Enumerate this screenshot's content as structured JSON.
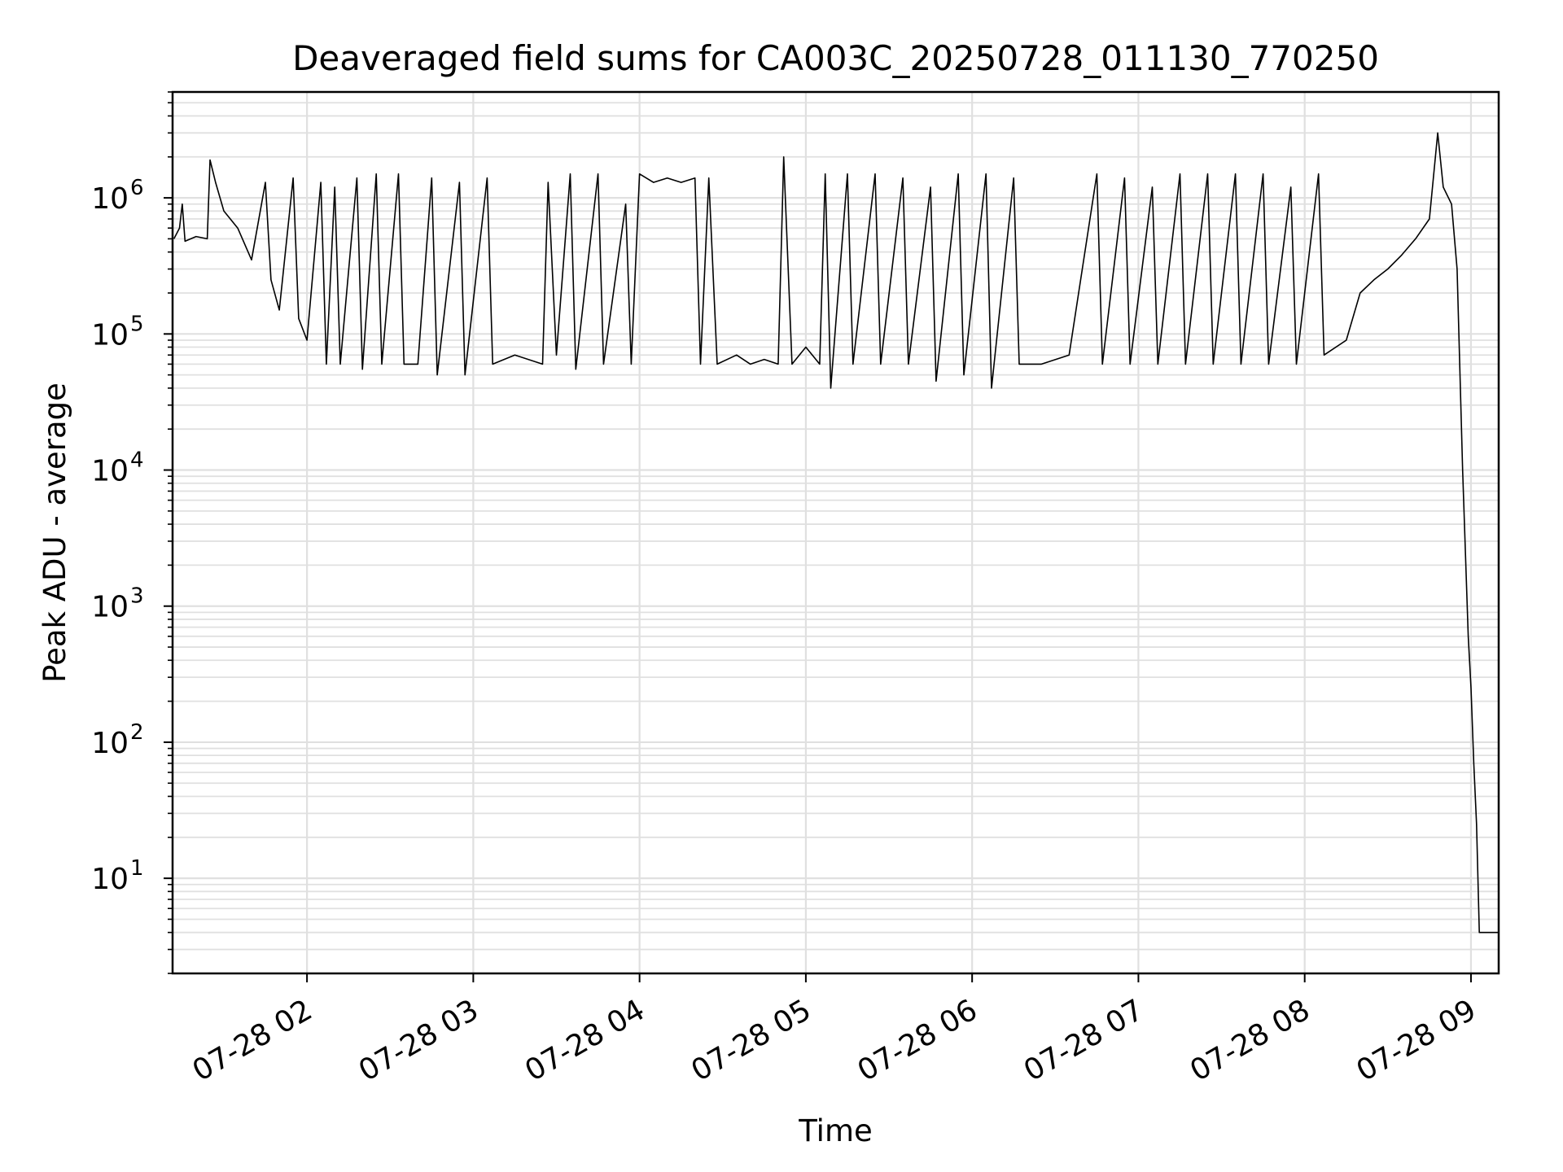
{
  "chart_data": {
    "type": "line",
    "title": "Deaveraged field sums for CA003C_20250728_011130_770250",
    "xlabel": "Time",
    "ylabel": "Peak ADU - average",
    "yscale": "log",
    "ylim": [
      2,
      6000000
    ],
    "xlim": [
      "2025-07-28 01:11:30",
      "2025-07-28 09:10:00"
    ],
    "grid": true,
    "line_color": "#000000",
    "grid_color": "#e0e0e0",
    "x_ticks": [
      {
        "t": "2025-07-28 02:00",
        "label": "07-28 02"
      },
      {
        "t": "2025-07-28 03:00",
        "label": "07-28 03"
      },
      {
        "t": "2025-07-28 04:00",
        "label": "07-28 04"
      },
      {
        "t": "2025-07-28 05:00",
        "label": "07-28 05"
      },
      {
        "t": "2025-07-28 06:00",
        "label": "07-28 06"
      },
      {
        "t": "2025-07-28 07:00",
        "label": "07-28 07"
      },
      {
        "t": "2025-07-28 08:00",
        "label": "07-28 08"
      },
      {
        "t": "2025-07-28 09:00",
        "label": "07-28 09"
      }
    ],
    "y_ticks": [
      {
        "value": 10,
        "base": "10",
        "exp": "1"
      },
      {
        "value": 100,
        "base": "10",
        "exp": "2"
      },
      {
        "value": 1000,
        "base": "10",
        "exp": "3"
      },
      {
        "value": 10000,
        "base": "10",
        "exp": "4"
      },
      {
        "value": 100000,
        "base": "10",
        "exp": "5"
      },
      {
        "value": 1000000,
        "base": "10",
        "exp": "6"
      }
    ],
    "series": [
      {
        "points": [
          [
            "2025-07-28 01:12",
            500000
          ],
          [
            "2025-07-28 01:14",
            600000
          ],
          [
            "2025-07-28 01:15",
            900000
          ],
          [
            "2025-07-28 01:16",
            480000
          ],
          [
            "2025-07-28 01:20",
            520000
          ],
          [
            "2025-07-28 01:24",
            500000
          ],
          [
            "2025-07-28 01:25",
            1900000
          ],
          [
            "2025-07-28 01:27",
            1300000
          ],
          [
            "2025-07-28 01:30",
            800000
          ],
          [
            "2025-07-28 01:35",
            600000
          ],
          [
            "2025-07-28 01:40",
            350000
          ],
          [
            "2025-07-28 01:45",
            1300000
          ],
          [
            "2025-07-28 01:47",
            250000
          ],
          [
            "2025-07-28 01:50",
            150000
          ],
          [
            "2025-07-28 01:55",
            1400000
          ],
          [
            "2025-07-28 01:57",
            130000
          ],
          [
            "2025-07-28 02:00",
            90000
          ],
          [
            "2025-07-28 02:05",
            1300000
          ],
          [
            "2025-07-28 02:07",
            60000
          ],
          [
            "2025-07-28 02:10",
            1200000
          ],
          [
            "2025-07-28 02:12",
            60000
          ],
          [
            "2025-07-28 02:18",
            1400000
          ],
          [
            "2025-07-28 02:20",
            55000
          ],
          [
            "2025-07-28 02:25",
            1500000
          ],
          [
            "2025-07-28 02:27",
            60000
          ],
          [
            "2025-07-28 02:33",
            1500000
          ],
          [
            "2025-07-28 02:35",
            60000
          ],
          [
            "2025-07-28 02:40",
            60000
          ],
          [
            "2025-07-28 02:45",
            1400000
          ],
          [
            "2025-07-28 02:47",
            50000
          ],
          [
            "2025-07-28 02:55",
            1300000
          ],
          [
            "2025-07-28 02:57",
            50000
          ],
          [
            "2025-07-28 03:05",
            1400000
          ],
          [
            "2025-07-28 03:07",
            60000
          ],
          [
            "2025-07-28 03:15",
            70000
          ],
          [
            "2025-07-28 03:25",
            60000
          ],
          [
            "2025-07-28 03:27",
            1300000
          ],
          [
            "2025-07-28 03:30",
            70000
          ],
          [
            "2025-07-28 03:35",
            1500000
          ],
          [
            "2025-07-28 03:37",
            55000
          ],
          [
            "2025-07-28 03:45",
            1500000
          ],
          [
            "2025-07-28 03:47",
            60000
          ],
          [
            "2025-07-28 03:55",
            900000
          ],
          [
            "2025-07-28 03:57",
            60000
          ],
          [
            "2025-07-28 04:00",
            1500000
          ],
          [
            "2025-07-28 04:05",
            1300000
          ],
          [
            "2025-07-28 04:10",
            1400000
          ],
          [
            "2025-07-28 04:15",
            1300000
          ],
          [
            "2025-07-28 04:20",
            1400000
          ],
          [
            "2025-07-28 04:22",
            60000
          ],
          [
            "2025-07-28 04:25",
            1400000
          ],
          [
            "2025-07-28 04:28",
            60000
          ],
          [
            "2025-07-28 04:35",
            70000
          ],
          [
            "2025-07-28 04:40",
            60000
          ],
          [
            "2025-07-28 04:45",
            65000
          ],
          [
            "2025-07-28 04:50",
            60000
          ],
          [
            "2025-07-28 04:52",
            2000000
          ],
          [
            "2025-07-28 04:55",
            60000
          ],
          [
            "2025-07-28 05:00",
            80000
          ],
          [
            "2025-07-28 05:05",
            60000
          ],
          [
            "2025-07-28 05:07",
            1500000
          ],
          [
            "2025-07-28 05:09",
            40000
          ],
          [
            "2025-07-28 05:15",
            1500000
          ],
          [
            "2025-07-28 05:17",
            60000
          ],
          [
            "2025-07-28 05:25",
            1500000
          ],
          [
            "2025-07-28 05:27",
            60000
          ],
          [
            "2025-07-28 05:35",
            1400000
          ],
          [
            "2025-07-28 05:37",
            60000
          ],
          [
            "2025-07-28 05:45",
            1200000
          ],
          [
            "2025-07-28 05:47",
            45000
          ],
          [
            "2025-07-28 05:55",
            1500000
          ],
          [
            "2025-07-28 05:57",
            50000
          ],
          [
            "2025-07-28 06:05",
            1500000
          ],
          [
            "2025-07-28 06:07",
            40000
          ],
          [
            "2025-07-28 06:15",
            1400000
          ],
          [
            "2025-07-28 06:17",
            60000
          ],
          [
            "2025-07-28 06:25",
            60000
          ],
          [
            "2025-07-28 06:35",
            70000
          ],
          [
            "2025-07-28 06:45",
            1500000
          ],
          [
            "2025-07-28 06:47",
            60000
          ],
          [
            "2025-07-28 06:55",
            1400000
          ],
          [
            "2025-07-28 06:57",
            60000
          ],
          [
            "2025-07-28 07:05",
            1200000
          ],
          [
            "2025-07-28 07:07",
            60000
          ],
          [
            "2025-07-28 07:15",
            1500000
          ],
          [
            "2025-07-28 07:17",
            60000
          ],
          [
            "2025-07-28 07:25",
            1500000
          ],
          [
            "2025-07-28 07:27",
            60000
          ],
          [
            "2025-07-28 07:35",
            1500000
          ],
          [
            "2025-07-28 07:37",
            60000
          ],
          [
            "2025-07-28 07:45",
            1500000
          ],
          [
            "2025-07-28 07:47",
            60000
          ],
          [
            "2025-07-28 07:55",
            1200000
          ],
          [
            "2025-07-28 07:57",
            60000
          ],
          [
            "2025-07-28 08:05",
            1500000
          ],
          [
            "2025-07-28 08:07",
            70000
          ],
          [
            "2025-07-28 08:15",
            90000
          ],
          [
            "2025-07-28 08:20",
            200000
          ],
          [
            "2025-07-28 08:25",
            250000
          ],
          [
            "2025-07-28 08:30",
            300000
          ],
          [
            "2025-07-28 08:35",
            380000
          ],
          [
            "2025-07-28 08:40",
            500000
          ],
          [
            "2025-07-28 08:45",
            700000
          ],
          [
            "2025-07-28 08:48",
            3000000
          ],
          [
            "2025-07-28 08:50",
            1200000
          ],
          [
            "2025-07-28 08:53",
            900000
          ],
          [
            "2025-07-28 08:55",
            300000
          ],
          [
            "2025-07-28 08:57",
            10000
          ],
          [
            "2025-07-28 08:59",
            600
          ],
          [
            "2025-07-28 09:00",
            250
          ],
          [
            "2025-07-28 09:01",
            70
          ],
          [
            "2025-07-28 09:02",
            25
          ],
          [
            "2025-07-28 09:03",
            4
          ],
          [
            "2025-07-28 09:10",
            4
          ]
        ]
      }
    ]
  }
}
